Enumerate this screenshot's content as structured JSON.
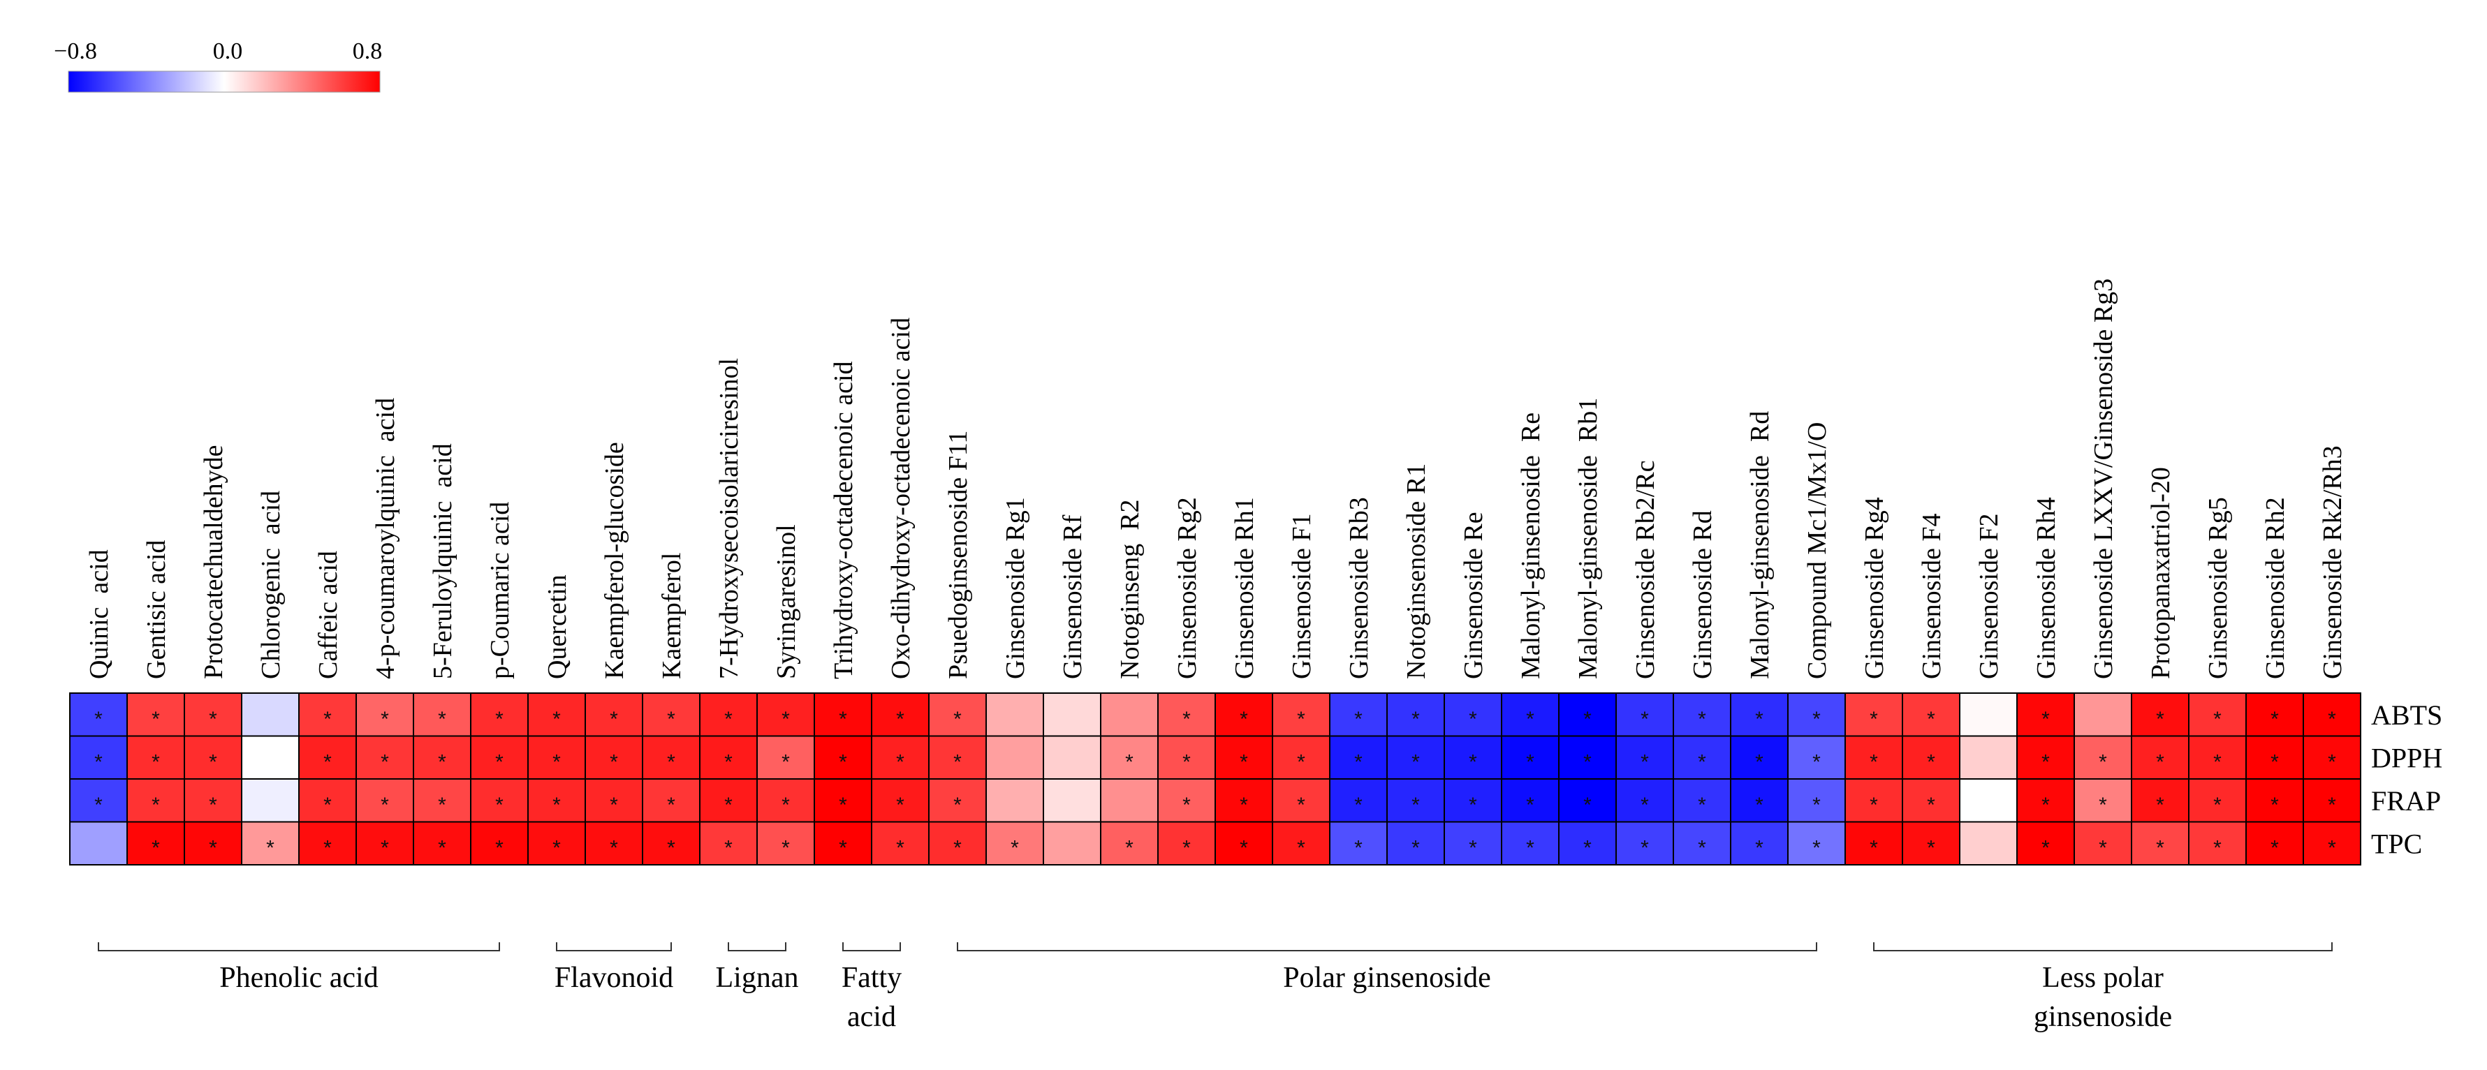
{
  "chart_data": {
    "type": "heatmap",
    "title": "",
    "colorbar": {
      "min": -0.8,
      "max": 0.8,
      "low_color": "#0000ff",
      "mid_color": "#ffffff",
      "high_color": "#ff0000",
      "tick_labels": [
        "−0.8",
        "0.0",
        "0.8"
      ]
    },
    "rows": [
      "ABTS",
      "DPPH",
      "FRAP",
      "TPC"
    ],
    "columns": [
      "Quinic  acid",
      "Gentisic acid",
      "Protocatechualdehyde",
      "Chlorogenic  acid",
      "Caffeic acid",
      "4-p-coumaroylquinic  acid",
      "5-Feruloylquinic  acid",
      "p-Coumaric acid",
      "Quercetin",
      "Kaempferol-glucoside",
      "Kaempferol",
      "7-Hydroxysecoisolariciresinol",
      "Syringaresinol",
      "Trihydroxy-octadecenoic acid",
      "Oxo-dihydroxy-octadecenoic acid",
      "Psuedoginsenoside F11",
      "Ginsenoside Rg1",
      "Ginsenoside Rf",
      "Notoginseng  R2",
      "Ginsenoside Rg2",
      "Ginsenoside Rh1",
      "Ginsenoside F1",
      "Ginsenoside Rb3",
      "Notoginsenoside R1",
      "Ginsenoside Re",
      "Malonyl-ginsenoside  Re",
      "Malonyl-ginsenoside  Rb1",
      "Ginsenoside Rb2/Rc",
      "Ginsenoside Rd",
      "Malonyl-ginsenoside  Rd",
      "Compound Mc1/Mx1/O",
      "Ginsenoside Rg4",
      "Ginsenoside F4",
      "Ginsenoside F2",
      "Ginsenoside Rh4",
      "Ginsenoside LXXV/Ginsenoside Rg3",
      "Protopanaxatriol-20",
      "Ginsenoside Rg5",
      "Ginsenoside Rh2",
      "Ginsenoside Rk2/Rh3"
    ],
    "values": [
      [
        -0.6,
        0.6,
        0.62,
        -0.12,
        0.62,
        0.48,
        0.52,
        0.66,
        0.68,
        0.66,
        0.62,
        0.7,
        0.7,
        0.78,
        0.76,
        0.55,
        0.25,
        0.12,
        0.35,
        0.52,
        0.78,
        0.6,
        -0.62,
        -0.64,
        -0.64,
        -0.72,
        -0.8,
        -0.64,
        -0.62,
        -0.66,
        -0.58,
        0.6,
        0.62,
        0.02,
        0.78,
        0.33,
        0.76,
        0.64,
        0.8,
        0.8
      ],
      [
        -0.62,
        0.66,
        0.66,
        0.0,
        0.7,
        0.63,
        0.65,
        0.7,
        0.7,
        0.7,
        0.7,
        0.72,
        0.5,
        0.8,
        0.7,
        0.63,
        0.3,
        0.15,
        0.38,
        0.55,
        0.78,
        0.65,
        -0.72,
        -0.7,
        -0.72,
        -0.78,
        -0.9,
        -0.7,
        -0.65,
        -0.76,
        -0.5,
        0.7,
        0.7,
        0.15,
        0.78,
        0.5,
        0.7,
        0.7,
        0.8,
        0.78
      ],
      [
        -0.6,
        0.64,
        0.64,
        -0.05,
        0.66,
        0.56,
        0.58,
        0.66,
        0.68,
        0.68,
        0.63,
        0.72,
        0.65,
        0.8,
        0.72,
        0.6,
        0.25,
        0.1,
        0.35,
        0.5,
        0.78,
        0.62,
        -0.7,
        -0.68,
        -0.7,
        -0.76,
        -0.86,
        -0.7,
        -0.64,
        -0.74,
        -0.52,
        0.66,
        0.65,
        0.0,
        0.78,
        0.4,
        0.74,
        0.67,
        0.8,
        0.8
      ],
      [
        -0.3,
        0.78,
        0.78,
        0.32,
        0.76,
        0.76,
        0.76,
        0.78,
        0.76,
        0.76,
        0.76,
        0.62,
        0.55,
        0.8,
        0.66,
        0.66,
        0.42,
        0.3,
        0.5,
        0.64,
        0.8,
        0.72,
        -0.55,
        -0.62,
        -0.6,
        -0.62,
        -0.66,
        -0.6,
        -0.58,
        -0.62,
        -0.44,
        0.78,
        0.76,
        0.15,
        0.8,
        0.62,
        0.58,
        0.62,
        0.8,
        0.78
      ]
    ],
    "significance": [
      [
        1,
        1,
        1,
        0,
        1,
        1,
        1,
        1,
        1,
        1,
        1,
        1,
        1,
        1,
        1,
        1,
        0,
        0,
        0,
        1,
        1,
        1,
        1,
        1,
        1,
        1,
        1,
        1,
        1,
        1,
        1,
        1,
        1,
        0,
        1,
        0,
        1,
        1,
        1,
        1
      ],
      [
        1,
        1,
        1,
        0,
        1,
        1,
        1,
        1,
        1,
        1,
        1,
        1,
        1,
        1,
        1,
        1,
        0,
        0,
        1,
        1,
        1,
        1,
        1,
        1,
        1,
        1,
        1,
        1,
        1,
        1,
        1,
        1,
        1,
        0,
        1,
        1,
        1,
        1,
        1,
        1
      ],
      [
        1,
        1,
        1,
        0,
        1,
        1,
        1,
        1,
        1,
        1,
        1,
        1,
        1,
        1,
        1,
        1,
        0,
        0,
        0,
        1,
        1,
        1,
        1,
        1,
        1,
        1,
        1,
        1,
        1,
        1,
        1,
        1,
        1,
        0,
        1,
        1,
        1,
        1,
        1,
        1
      ],
      [
        0,
        1,
        1,
        1,
        1,
        1,
        1,
        1,
        1,
        1,
        1,
        1,
        1,
        1,
        1,
        1,
        1,
        0,
        1,
        1,
        1,
        1,
        1,
        1,
        1,
        1,
        1,
        1,
        1,
        1,
        1,
        1,
        1,
        0,
        1,
        1,
        1,
        1,
        1,
        1
      ]
    ],
    "significance_marker": "*",
    "groups": [
      {
        "label": "Phenolic acid",
        "start": 0,
        "end": 7
      },
      {
        "label": "Flavonoid",
        "start": 8,
        "end": 10
      },
      {
        "label": "Lignan",
        "start": 11,
        "end": 12
      },
      {
        "label": "Fatty acid",
        "start": 13,
        "end": 14
      },
      {
        "label": "Polar ginsenoside",
        "start": 15,
        "end": 30
      },
      {
        "label": "Less polar ginsenoside",
        "start": 31,
        "end": 39
      }
    ],
    "group_label_lines": [
      [
        "Phenolic acid"
      ],
      [
        "Flavonoid"
      ],
      [
        "Lignan"
      ],
      [
        "Fatty",
        "acid"
      ],
      [
        "Polar ginsenoside"
      ],
      [
        "Less polar",
        "ginsenoside"
      ]
    ]
  }
}
